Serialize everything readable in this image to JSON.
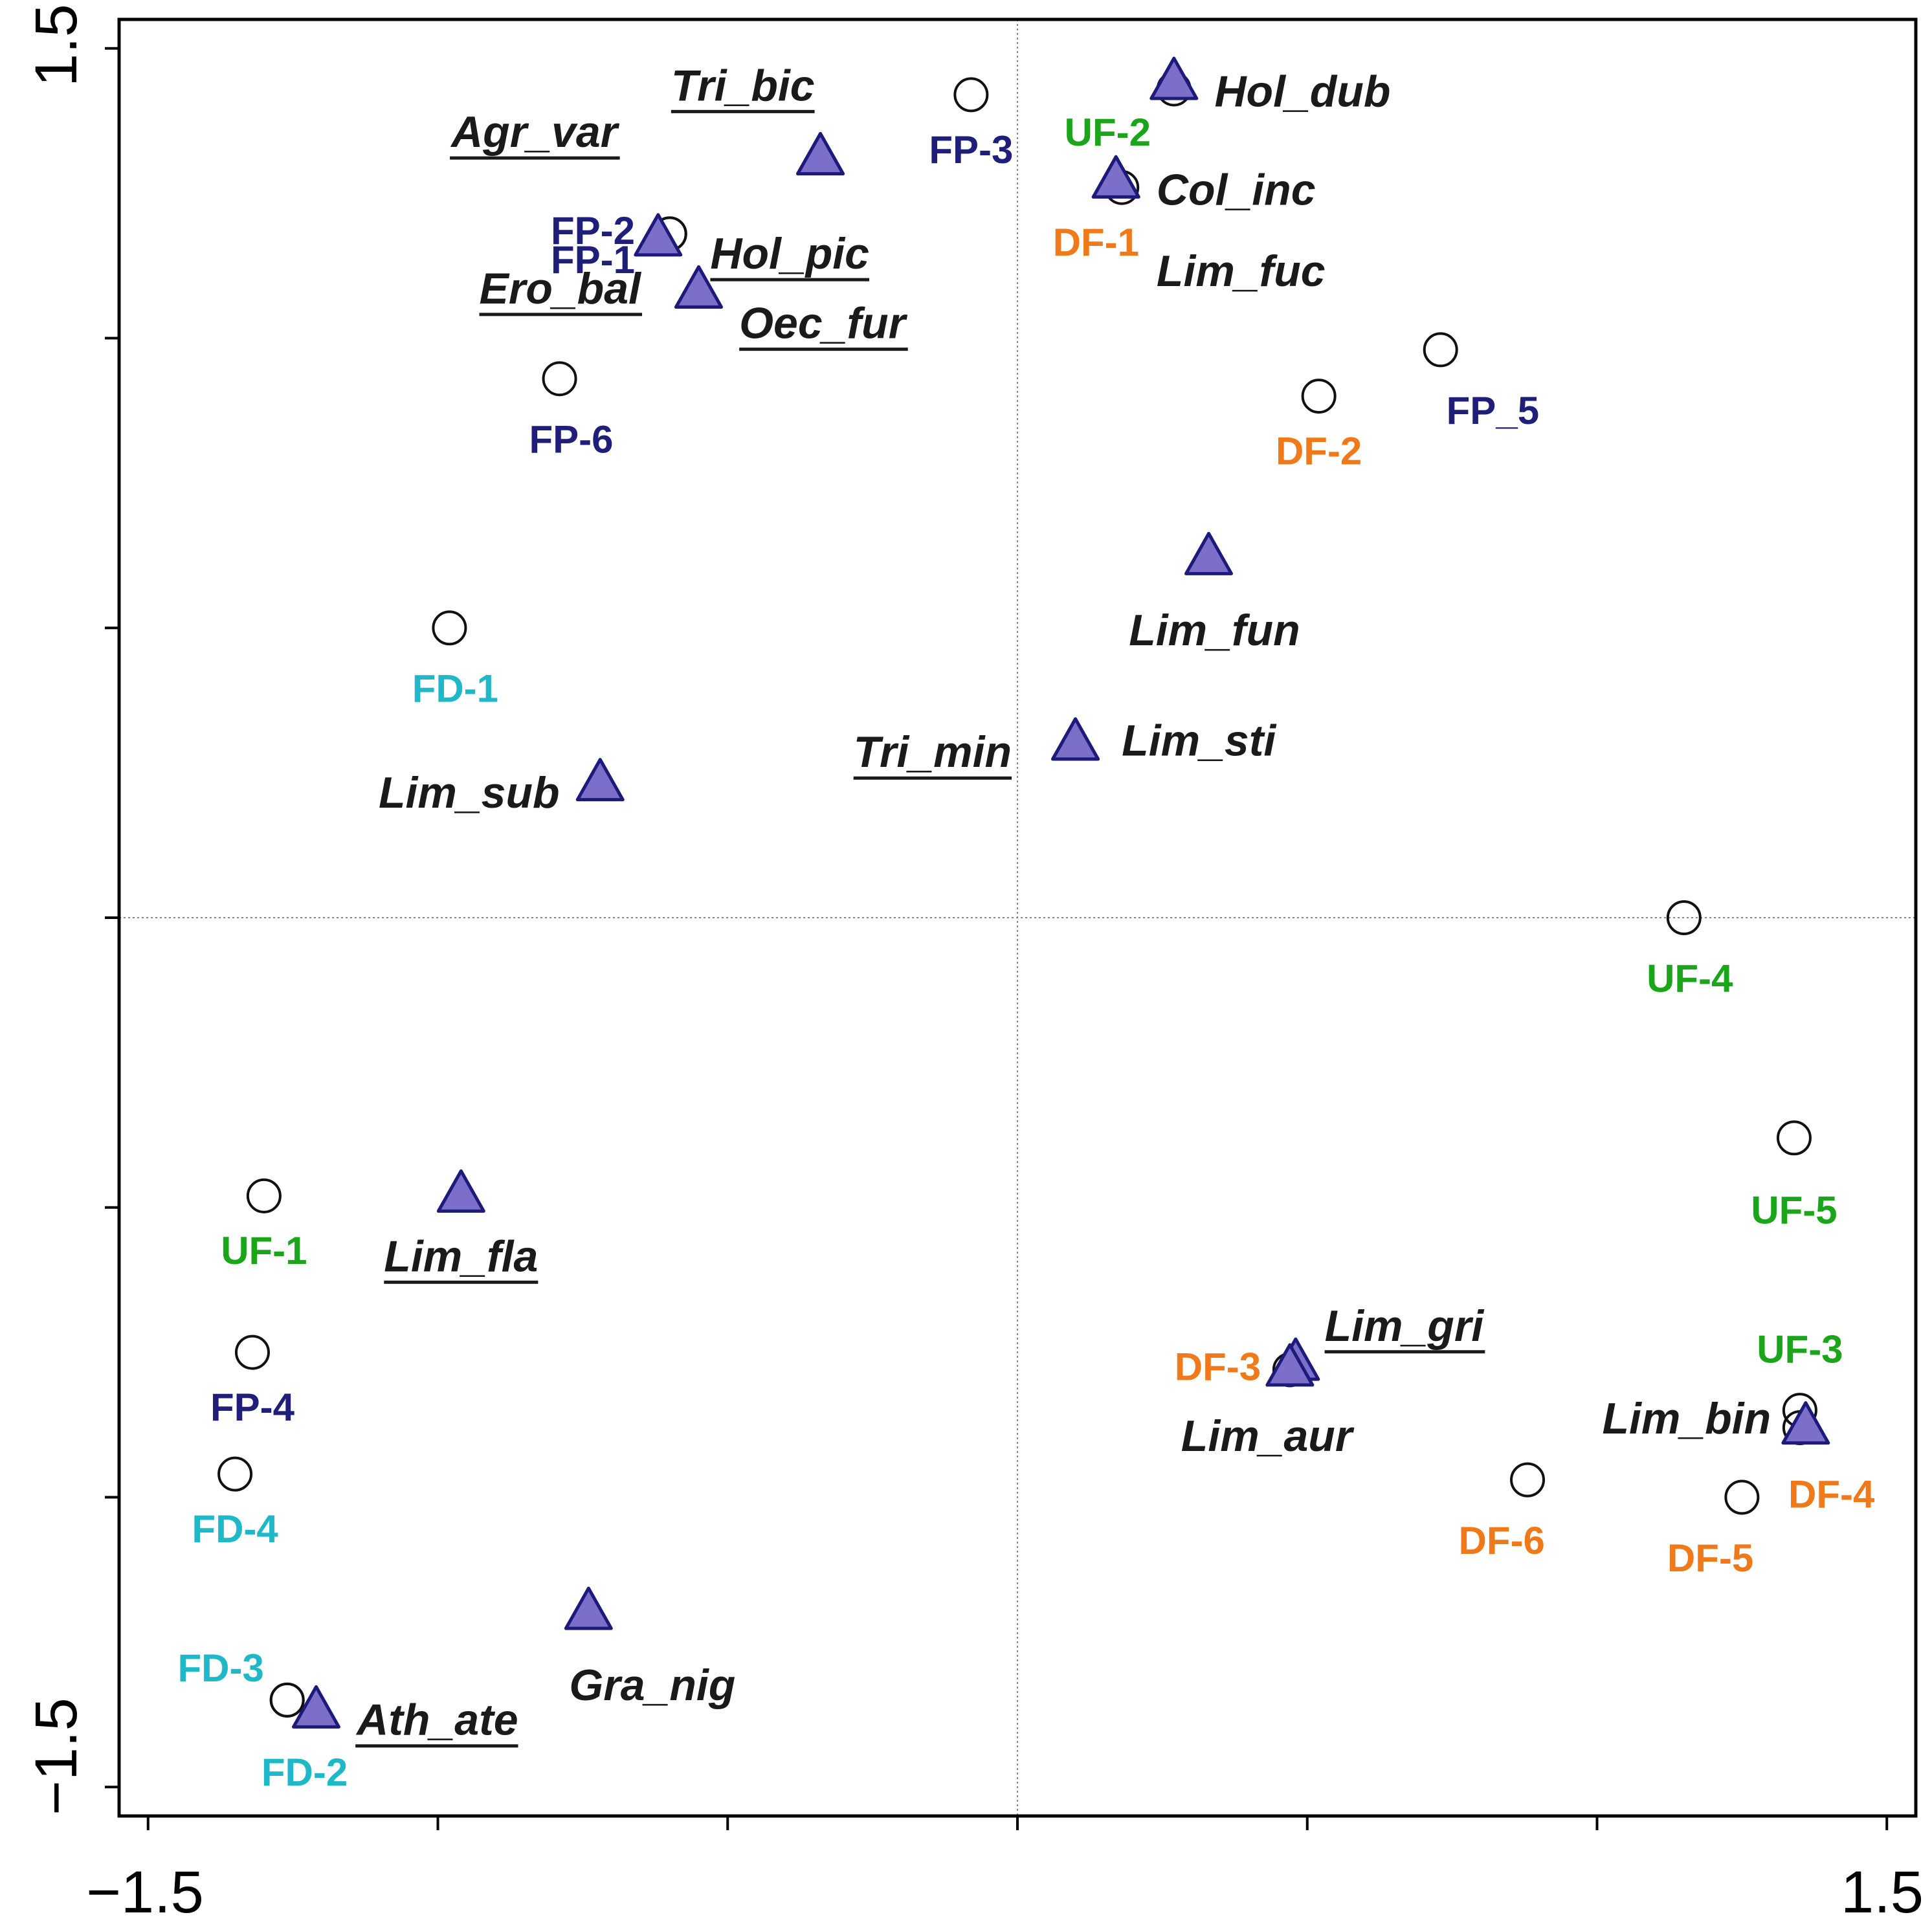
{
  "chart_data": {
    "type": "scatter",
    "title": "",
    "xlabel": "",
    "ylabel": "",
    "xlim": [
      -1.55,
      1.55
    ],
    "ylim": [
      -1.55,
      1.55
    ],
    "x_tick_labels": [
      "−1.5",
      "1.5"
    ],
    "y_tick_labels": [
      "−1.5",
      "1.5"
    ],
    "reference_lines": {
      "x": 0,
      "y": 0,
      "style": "dotted"
    },
    "colors": {
      "FP": "#1f1f7a",
      "FD": "#1fb8c9",
      "UF": "#1aa51a",
      "DF": "#f07a1a",
      "species_fill": "#7b6fc9",
      "species_stroke": "#1c1a7a",
      "species_text": "#1a1a1a"
    },
    "series": [
      {
        "name": "Sites",
        "marker": "open-circle",
        "points": [
          {
            "label": "FP-1",
            "group": "FP",
            "x": -0.6,
            "y": 1.18,
            "anchor": "end",
            "dx": -0.06,
            "dy": -0.05
          },
          {
            "label": "FP-2",
            "group": "FP",
            "x": -0.6,
            "y": 1.18,
            "anchor": "end",
            "dx": -0.06,
            "dy": 0.0
          },
          {
            "label": "FP-3",
            "group": "FP",
            "x": -0.08,
            "y": 1.42,
            "anchor": "middle",
            "dx": 0.0,
            "dy": -0.1
          },
          {
            "label": "FP-4",
            "group": "FP",
            "x": -1.32,
            "y": -0.75,
            "anchor": "middle",
            "dx": 0.0,
            "dy": -0.1
          },
          {
            "label": "FP_5",
            "group": "FP",
            "x": 0.73,
            "y": 0.98,
            "anchor": "start",
            "dx": 0.01,
            "dy": -0.11
          },
          {
            "label": "FP-6",
            "group": "FP",
            "x": -0.79,
            "y": 0.93,
            "anchor": "middle",
            "dx": 0.02,
            "dy": -0.11
          },
          {
            "label": "FD-1",
            "group": "FD",
            "x": -0.98,
            "y": 0.5,
            "anchor": "middle",
            "dx": 0.01,
            "dy": -0.11
          },
          {
            "label": "FD-2",
            "group": "FD",
            "x": -1.26,
            "y": -1.35,
            "anchor": "middle",
            "dx": 0.03,
            "dy": -0.13
          },
          {
            "label": "FD-3",
            "group": "FD",
            "x": -1.26,
            "y": -1.35,
            "anchor": "end",
            "dx": -0.04,
            "dy": 0.05
          },
          {
            "label": "FD-4",
            "group": "FD",
            "x": -1.35,
            "y": -0.96,
            "anchor": "middle",
            "dx": 0.0,
            "dy": -0.1
          },
          {
            "label": "UF-1",
            "group": "UF",
            "x": -1.3,
            "y": -0.48,
            "anchor": "middle",
            "dx": 0.0,
            "dy": -0.1
          },
          {
            "label": "UF-2",
            "group": "UF",
            "x": 0.27,
            "y": 1.43,
            "anchor": "end",
            "dx": -0.04,
            "dy": -0.08
          },
          {
            "label": "UF-3",
            "group": "UF",
            "x": 1.35,
            "y": -0.85,
            "anchor": "middle",
            "dx": 0.0,
            "dy": 0.1
          },
          {
            "label": "UF-4",
            "group": "UF",
            "x": 1.15,
            "y": 0.0,
            "anchor": "middle",
            "dx": 0.01,
            "dy": -0.11
          },
          {
            "label": "UF-5",
            "group": "UF",
            "x": 1.34,
            "y": -0.38,
            "anchor": "middle",
            "dx": 0.0,
            "dy": -0.13
          },
          {
            "label": "DF-1",
            "group": "DF",
            "x": 0.18,
            "y": 1.26,
            "anchor": "end",
            "dx": 0.03,
            "dy": -0.1
          },
          {
            "label": "DF-2",
            "group": "DF",
            "x": 0.52,
            "y": 0.9,
            "anchor": "middle",
            "dx": 0.0,
            "dy": -0.1
          },
          {
            "label": "DF-3",
            "group": "DF",
            "x": 0.47,
            "y": -0.78,
            "anchor": "end",
            "dx": -0.05,
            "dy": 0.0
          },
          {
            "label": "DF-4",
            "group": "DF",
            "x": 1.35,
            "y": -0.88,
            "anchor": "start",
            "dx": -0.02,
            "dy": -0.12
          },
          {
            "label": "DF-5",
            "group": "DF",
            "x": 1.25,
            "y": -1.0,
            "anchor": "end",
            "dx": 0.02,
            "dy": -0.11
          },
          {
            "label": "DF-6",
            "group": "DF",
            "x": 0.88,
            "y": -0.97,
            "anchor": "end",
            "dx": 0.03,
            "dy": -0.11
          }
        ]
      },
      {
        "name": "Species",
        "marker": "filled-triangle",
        "points": [
          {
            "label": "Hol_dub",
            "x": 0.27,
            "y": 1.44,
            "underline": false,
            "anchor": "start",
            "dx": 0.07,
            "dy": -0.02
          },
          {
            "label": "Col_inc",
            "x": 0.17,
            "y": 1.27,
            "underline": false,
            "anchor": "start",
            "dx": 0.07,
            "dy": -0.02
          },
          {
            "label": "Lim_fuc",
            "x": 0.17,
            "y": 1.27,
            "underline": false,
            "anchor": "start",
            "dx": 0.07,
            "dy": -0.16
          },
          {
            "label": "Tri_bic",
            "x": -0.34,
            "y": 1.31,
            "underline": true,
            "anchor": "end",
            "dx": -0.01,
            "dy": 0.12
          },
          {
            "label": "Agr_var",
            "x": -0.34,
            "y": 1.31,
            "underline": true,
            "anchor": "end",
            "dx": -0.35,
            "dy": 0.04
          },
          {
            "label": "Hol_pic",
            "x": -0.62,
            "y": 1.17,
            "underline": true,
            "anchor": "start",
            "dx": 0.09,
            "dy": -0.03
          },
          {
            "label": "Ero_bal",
            "x": -0.55,
            "y": 1.08,
            "underline": true,
            "anchor": "end",
            "dx": -0.1,
            "dy": 0.0
          },
          {
            "label": "Oec_fur",
            "x": -0.55,
            "y": 1.08,
            "underline": true,
            "anchor": "start",
            "dx": 0.07,
            "dy": -0.06
          },
          {
            "label": "Lim_fun",
            "x": 0.33,
            "y": 0.62,
            "underline": false,
            "anchor": "middle",
            "dx": 0.01,
            "dy": -0.13
          },
          {
            "label": "Tri_min",
            "x": 0.1,
            "y": 0.3,
            "underline": true,
            "anchor": "end",
            "dx": -0.11,
            "dy": -0.02
          },
          {
            "label": "Lim_sti",
            "x": 0.1,
            "y": 0.3,
            "underline": false,
            "anchor": "start",
            "dx": 0.08,
            "dy": 0.0
          },
          {
            "label": "Lim_sub",
            "x": -0.72,
            "y": 0.23,
            "underline": false,
            "anchor": "end",
            "dx": -0.07,
            "dy": -0.02
          },
          {
            "label": "Lim_fla",
            "x": -0.96,
            "y": -0.48,
            "underline": true,
            "anchor": "middle",
            "dx": 0.0,
            "dy": -0.11
          },
          {
            "label": "Lim_gri",
            "x": 0.48,
            "y": -0.77,
            "underline": true,
            "anchor": "start",
            "dx": 0.05,
            "dy": 0.06
          },
          {
            "label": "Lim_aur",
            "x": 0.47,
            "y": -0.78,
            "underline": false,
            "anchor": "middle",
            "dx": -0.04,
            "dy": -0.12
          },
          {
            "label": "Lim_bin",
            "x": 1.36,
            "y": -0.88,
            "underline": false,
            "anchor": "end",
            "dx": -0.06,
            "dy": 0.01
          },
          {
            "label": "Gra_nig",
            "x": -0.74,
            "y": -1.2,
            "underline": false,
            "anchor": "middle",
            "dx": 0.11,
            "dy": -0.13
          },
          {
            "label": "Ath_ate",
            "x": -1.21,
            "y": -1.37,
            "underline": true,
            "anchor": "start",
            "dx": 0.07,
            "dy": -0.02
          }
        ]
      }
    ]
  }
}
